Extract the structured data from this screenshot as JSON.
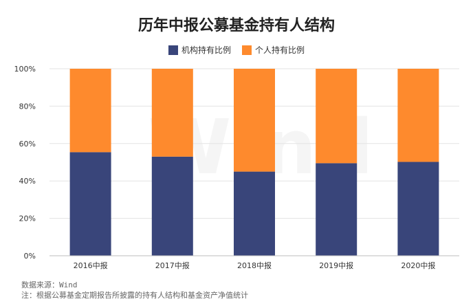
{
  "watermark": "Wind",
  "source_text": "数据来源：Wind",
  "note_text": "注：根据公募基金定期报告所披露的持有人结构和基金资产净值统计",
  "colors": {
    "institutional": "#39457a",
    "individual": "#fe8a2d",
    "grid": "#e3e3e3",
    "axis_text": "#333333"
  },
  "chart_data": {
    "type": "bar",
    "stacked": true,
    "title": "历年中报公募基金持有人结构",
    "xlabel": "",
    "ylabel": "",
    "categories": [
      "2016中报",
      "2017中报",
      "2018中报",
      "2019中报",
      "2020中报"
    ],
    "series": [
      {
        "name": "机构持有比例",
        "values": [
          55.4,
          53.0,
          45.0,
          49.5,
          50.2
        ]
      },
      {
        "name": "个人持有比例",
        "values": [
          44.6,
          47.0,
          55.0,
          50.5,
          49.8
        ]
      }
    ],
    "ylim": [
      0,
      100
    ],
    "yticks": [
      "0%",
      "20%",
      "40%",
      "60%",
      "80%",
      "100%"
    ],
    "grid": true,
    "legend_position": "top"
  }
}
